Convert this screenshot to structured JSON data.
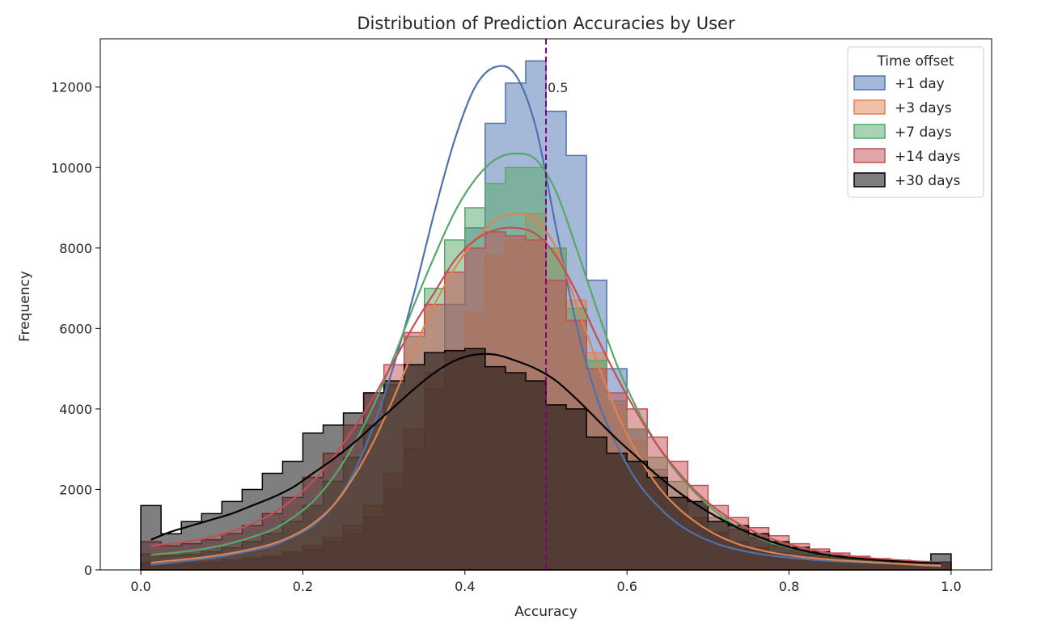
{
  "chart_data": {
    "type": "histogram",
    "title": "Distribution of Prediction Accuracies by User",
    "xlabel": "Accuracy",
    "ylabel": "Frequency",
    "xlim": [
      -0.05,
      1.05
    ],
    "ylim": [
      0,
      13200
    ],
    "xticks": [
      0.0,
      0.2,
      0.4,
      0.6,
      0.8,
      1.0
    ],
    "xtick_labels": [
      "0.0",
      "0.2",
      "0.4",
      "0.6",
      "0.8",
      "1.0"
    ],
    "yticks": [
      0,
      2000,
      4000,
      6000,
      8000,
      10000,
      12000
    ],
    "ytick_labels": [
      "0",
      "2000",
      "4000",
      "6000",
      "8000",
      "10000",
      "12000"
    ],
    "grid": false,
    "bin_edges": [
      0.0,
      0.025,
      0.05,
      0.075,
      0.1,
      0.125,
      0.15,
      0.175,
      0.2,
      0.225,
      0.25,
      0.275,
      0.3,
      0.325,
      0.35,
      0.375,
      0.4,
      0.425,
      0.45,
      0.475,
      0.5,
      0.525,
      0.55,
      0.575,
      0.6,
      0.625,
      0.65,
      0.675,
      0.7,
      0.725,
      0.75,
      0.775,
      0.8,
      0.825,
      0.85,
      0.875,
      0.9,
      0.925,
      0.95,
      0.975,
      1.0
    ],
    "legend": {
      "title": "Time offset",
      "placement": "upper right"
    },
    "series": [
      {
        "name": "+1 day",
        "color": "#4c72b0",
        "counts": [
          150,
          100,
          120,
          150,
          200,
          250,
          300,
          400,
          500,
          700,
          900,
          1300,
          2000,
          3000,
          4500,
          6600,
          8500,
          11100,
          12100,
          12650,
          11400,
          10300,
          7200,
          5000,
          3500,
          2500,
          1800,
          1300,
          900,
          700,
          500,
          400,
          350,
          300,
          250,
          220,
          200,
          180,
          160,
          200
        ],
        "kde": [
          130,
          180,
          240,
          300,
          380,
          480,
          600,
          820,
          1100,
          1600,
          2400,
          3600,
          5100,
          6900,
          8900,
          10700,
          12000,
          12500,
          12300,
          11000,
          8500,
          6100,
          4300,
          3100,
          2200,
          1600,
          1150,
          850,
          640,
          500,
          400,
          330,
          280,
          240,
          210,
          190,
          170,
          150,
          140,
          130
        ]
      },
      {
        "name": "+3 days",
        "color": "#dd8452",
        "counts": [
          200,
          150,
          180,
          200,
          250,
          300,
          350,
          450,
          600,
          800,
          1100,
          1600,
          2400,
          3500,
          4900,
          5500,
          6400,
          7800,
          8200,
          8850,
          8000,
          6700,
          5400,
          4100,
          3200,
          2400,
          1800,
          1300,
          950,
          700,
          550,
          420,
          350,
          300,
          260,
          220,
          200,
          180,
          160,
          120
        ],
        "kde": [
          180,
          230,
          280,
          340,
          420,
          520,
          650,
          850,
          1150,
          1600,
          2300,
          3200,
          4300,
          5500,
          6600,
          7500,
          8200,
          8700,
          8850,
          8700,
          8000,
          6600,
          5200,
          3900,
          2900,
          2100,
          1550,
          1150,
          850,
          640,
          500,
          400,
          330,
          280,
          240,
          210,
          180,
          150,
          120,
          100
        ]
      },
      {
        "name": "+7 days",
        "color": "#55a868",
        "counts": [
          400,
          350,
          380,
          450,
          550,
          700,
          900,
          1200,
          1600,
          2200,
          2800,
          3600,
          4600,
          5800,
          7000,
          8200,
          9000,
          9600,
          10000,
          10000,
          8000,
          6500,
          5200,
          4200,
          3500,
          2800,
          2200,
          1700,
          1300,
          1000,
          800,
          600,
          480,
          380,
          300,
          250,
          220,
          200,
          180,
          150
        ],
        "kde": [
          380,
          420,
          480,
          560,
          670,
          820,
          1000,
          1300,
          1700,
          2300,
          3100,
          4100,
          5300,
          6600,
          7800,
          8900,
          9700,
          10200,
          10350,
          10200,
          9400,
          8000,
          6500,
          5100,
          4000,
          3100,
          2400,
          1850,
          1400,
          1060,
          800,
          620,
          490,
          400,
          330,
          280,
          240,
          210,
          190,
          170
        ]
      },
      {
        "name": "+14 days",
        "color": "#c44e52",
        "counts": [
          700,
          600,
          650,
          750,
          900,
          1100,
          1400,
          1800,
          2300,
          2900,
          3600,
          4400,
          5100,
          5900,
          6600,
          7400,
          8000,
          8400,
          8300,
          8200,
          7200,
          6200,
          5000,
          4400,
          4000,
          3300,
          2700,
          2100,
          1600,
          1300,
          1050,
          850,
          650,
          520,
          420,
          340,
          280,
          240,
          200,
          180
        ],
        "kde": [
          600,
          650,
          720,
          820,
          960,
          1150,
          1400,
          1750,
          2200,
          2800,
          3500,
          4300,
          5200,
          6100,
          6900,
          7700,
          8200,
          8450,
          8500,
          8350,
          7800,
          6900,
          5800,
          4800,
          3900,
          3100,
          2450,
          1900,
          1480,
          1150,
          900,
          710,
          570,
          460,
          380,
          320,
          270,
          240,
          210,
          190
        ]
      },
      {
        "name": "+30 days",
        "color": "#000000",
        "counts": [
          1600,
          900,
          1200,
          1400,
          1700,
          2000,
          2400,
          2700,
          3400,
          3600,
          3900,
          4400,
          4700,
          5100,
          5400,
          5450,
          5500,
          5050,
          4900,
          4700,
          4100,
          4000,
          3300,
          2900,
          2700,
          2300,
          1800,
          1700,
          1200,
          1100,
          900,
          700,
          560,
          450,
          350,
          300,
          250,
          200,
          150,
          400
        ],
        "kde": [
          750,
          950,
          1100,
          1250,
          1400,
          1600,
          1800,
          2050,
          2400,
          2750,
          3150,
          3600,
          4050,
          4500,
          4900,
          5200,
          5350,
          5350,
          5200,
          5000,
          4700,
          4250,
          3750,
          3250,
          2800,
          2350,
          1950,
          1600,
          1300,
          1040,
          820,
          640,
          500,
          400,
          330,
          280,
          240,
          210,
          180,
          170
        ]
      }
    ],
    "annotations": [
      {
        "type": "vline",
        "x": 0.5,
        "color": "#800080",
        "style": "dashed",
        "label": "0.5"
      }
    ]
  }
}
